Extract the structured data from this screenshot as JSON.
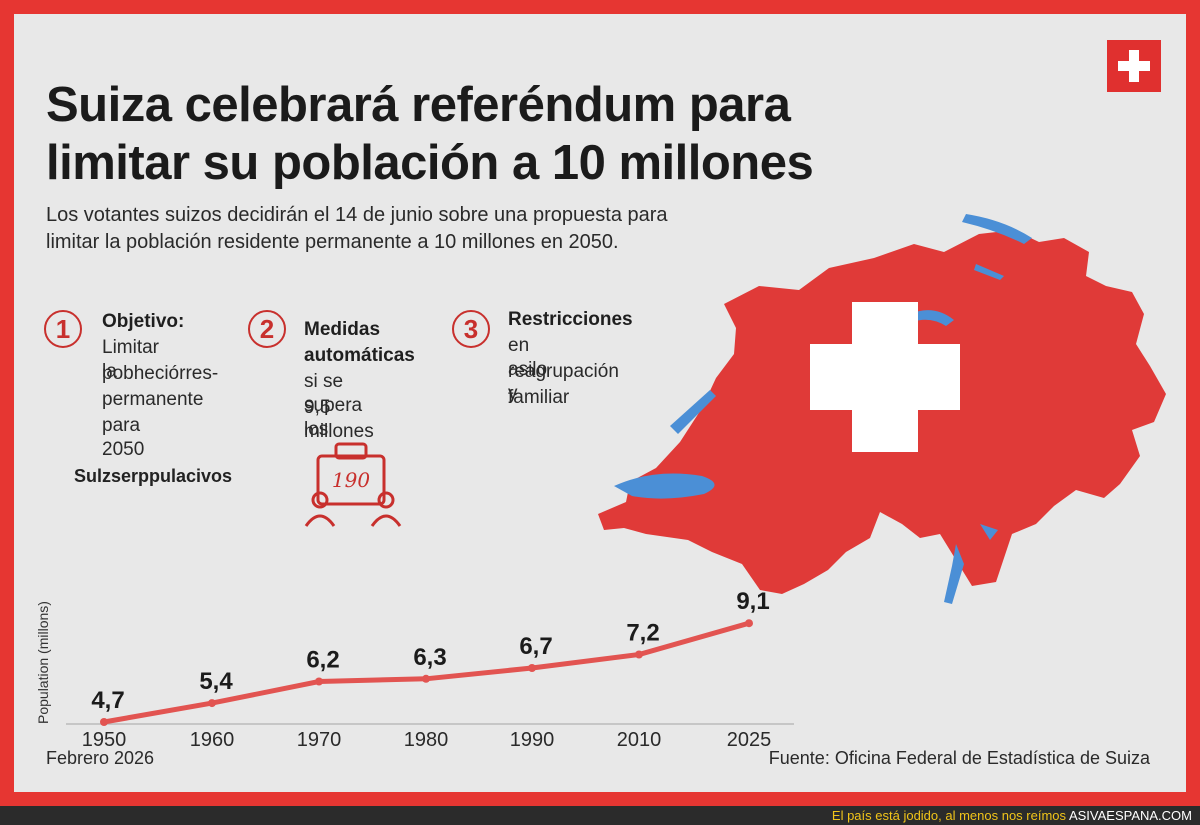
{
  "header": {
    "title": "Suiza celebrará referéndum para limitar su población a 10 millones",
    "subtitle": "Los votantes suizos decidirán el 14 de junio sobre una propuesta para limitar la población residente permanente a 10 millones en 2050."
  },
  "points": [
    {
      "number": "1",
      "title": "Objetivo:",
      "lines": [
        "Limitar la",
        "pobheciórres-",
        "permanente",
        "para 2050"
      ]
    },
    {
      "number": "2",
      "title_lines": [
        "Medidas",
        "automáticas"
      ],
      "lines": [
        "si se supera los",
        "9,5 millones"
      ]
    },
    {
      "number": "3",
      "title": "Restricciones",
      "lines": [
        "en asilo y",
        "reagrupación",
        "familiar"
      ]
    }
  ],
  "side_label": "Sulzserppulacivos",
  "bag_label": "190",
  "colors": {
    "accent": "#e0302f",
    "line": "#e25451",
    "background": "#e8e8e8",
    "text": "#1b1b1b"
  },
  "chart_data": {
    "type": "line",
    "ylabel": "Population (millons)",
    "categories": [
      "1950",
      "1960",
      "1970",
      "1980",
      "1990",
      "2010",
      "2025"
    ],
    "values": [
      4.7,
      5.4,
      6.2,
      6.3,
      6.7,
      7.2,
      9.1
    ],
    "value_labels": [
      "4,7",
      "5,4",
      "6,2",
      "6,3",
      "6,7",
      "7,2",
      "9,1"
    ]
  },
  "footer": {
    "left": "Febrero 2026",
    "right": "Fuente: Oficina Federal de Estadística de Suiza"
  },
  "bottom_bar": {
    "text": "El país está jodido, al menos nos reímos",
    "brand": "ASIVAESPANA.COM"
  }
}
